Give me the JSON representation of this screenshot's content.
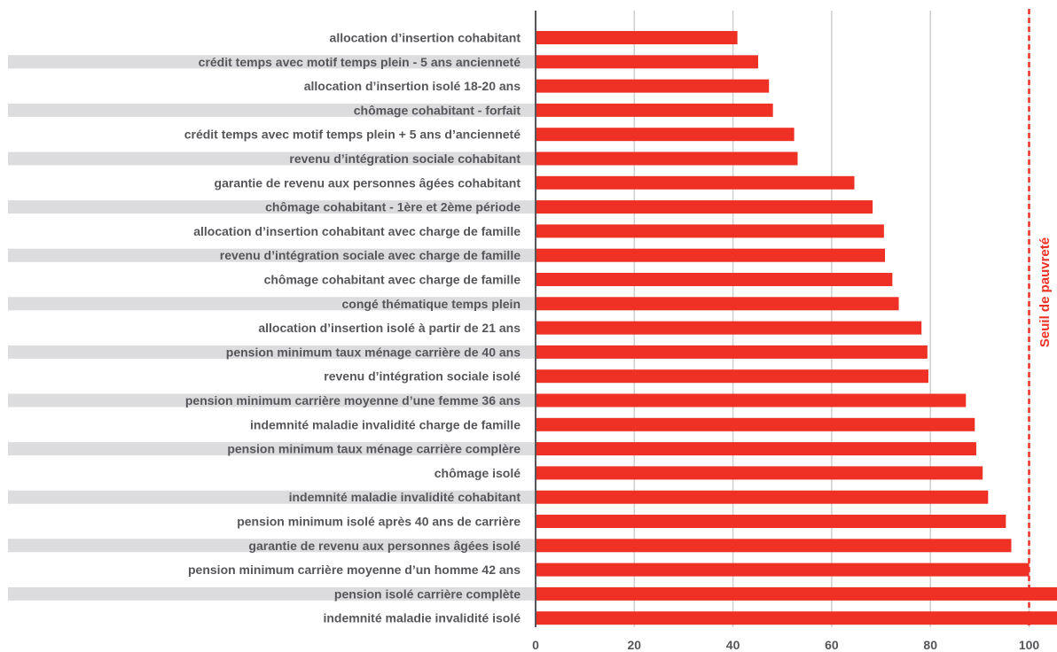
{
  "chart_data": {
    "type": "bar",
    "orientation": "horizontal",
    "title": "",
    "xlabel": "",
    "ylabel": "",
    "xlim": [
      0,
      104
    ],
    "x_ticks": [
      0,
      20,
      40,
      60,
      80,
      100
    ],
    "grid": true,
    "legend": "none",
    "colors": {
      "bar": "#ee3124",
      "reference_line": "#ee3124",
      "label_band": "#dcdcde",
      "gridline": "#cfcfd2",
      "axis": "#56565a",
      "text": "#56565a"
    },
    "categories": [
      "allocation d’insertion cohabitant",
      "crédit temps avec motif temps plein - 5 ans ancienneté",
      "allocation d’insertion isolé 18-20 ans",
      "chômage cohabitant - forfait",
      "crédit temps avec motif temps plein + 5 ans d’ancienneté",
      "revenu d’intégration sociale cohabitant",
      "garantie de revenu aux personnes âgées cohabitant",
      "chômage cohabitant - 1ère et 2ème période",
      "allocation d’insertion cohabitant avec charge de famille",
      "revenu d’intégration sociale avec charge de famille",
      "chômage cohabitant avec charge de famille",
      "congé thématique temps plein",
      "allocation d’insertion isolé à partir de 21 ans",
      "pension minimum taux ménage carrière de 40 ans",
      "revenu d’intégration sociale isolé",
      "pension minimum carrière moyenne d’une femme 36 ans",
      "indemnité maladie invalidité charge de famille",
      "pension minimum taux ménage carrière complère",
      "chômage isolé",
      "indemnité maladie invalidité cohabitant",
      "pension minimum isolé après 40 ans de carrière",
      "garantie de revenu aux personnes âgées isolé",
      "pension minimum carrière moyenne d’un homme 42 ans",
      "pension isolé carrière complète",
      "indemnité maladie invalidité isolé"
    ],
    "values": [
      40.9,
      45.1,
      47.3,
      48.1,
      52.4,
      53.1,
      64.6,
      68.3,
      70.6,
      70.8,
      72.3,
      73.6,
      78.2,
      79.4,
      79.6,
      87.2,
      89.0,
      89.3,
      90.6,
      91.7,
      95.3,
      96.4,
      100.0,
      106.0,
      106.0
    ],
    "banded_rows": [
      1,
      3,
      5,
      7,
      9,
      11,
      13,
      15,
      17,
      19,
      21,
      23
    ],
    "reference_line": {
      "value": 100,
      "label": "Seuil de pauvreté",
      "style": "dashed"
    }
  }
}
